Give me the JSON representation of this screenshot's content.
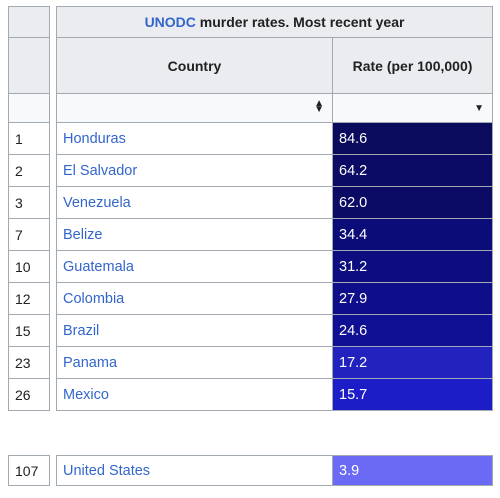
{
  "caption": {
    "link": "UNODC",
    "rest": " murder rates. Most recent year"
  },
  "headers": {
    "country": "Country",
    "rate": "Rate (per 100,000)"
  },
  "sort_icons": {
    "country": "sort-updown-icon",
    "rate": "dropdown-arrow-icon"
  },
  "rows": [
    {
      "rank": "1",
      "country": "Honduras",
      "rate": "84.6",
      "color": "#0b0b5e"
    },
    {
      "rank": "2",
      "country": "El Salvador",
      "rate": "64.2",
      "color": "#0b0b66"
    },
    {
      "rank": "3",
      "country": "Venezuela",
      "rate": "62.0",
      "color": "#0b0b66"
    },
    {
      "rank": "7",
      "country": "Belize",
      "rate": "34.4",
      "color": "#0c0c79"
    },
    {
      "rank": "10",
      "country": "Guatemala",
      "rate": "31.2",
      "color": "#0d0d80"
    },
    {
      "rank": "12",
      "country": "Colombia",
      "rate": "27.9",
      "color": "#0e0e8a"
    },
    {
      "rank": "15",
      "country": "Brazil",
      "rate": "24.6",
      "color": "#101094"
    },
    {
      "rank": "23",
      "country": "Panama",
      "rate": "17.2",
      "color": "#2222bf"
    },
    {
      "rank": "26",
      "country": "Mexico",
      "rate": "15.7",
      "color": "#1d1dc8"
    }
  ],
  "us_row": {
    "rank": "107",
    "country": "United States",
    "rate": "3.9",
    "color": "#6a6af5"
  }
}
